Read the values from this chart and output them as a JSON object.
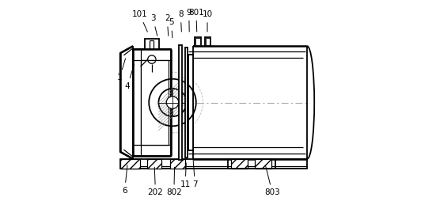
{
  "bg_color": "#ffffff",
  "line_color": "#000000",
  "figsize": [
    5.51,
    2.59
  ],
  "dpi": 100,
  "labels": {
    "1": [
      0.02,
      0.62,
      0.05,
      0.72
    ],
    "4": [
      0.058,
      0.58,
      0.092,
      0.69
    ],
    "101": [
      0.118,
      0.93,
      0.158,
      0.84
    ],
    "3": [
      0.183,
      0.91,
      0.205,
      0.82
    ],
    "2": [
      0.252,
      0.91,
      0.258,
      0.82
    ],
    "5": [
      0.272,
      0.89,
      0.278,
      0.81
    ],
    "8": [
      0.318,
      0.93,
      0.322,
      0.84
    ],
    "9": [
      0.358,
      0.94,
      0.36,
      0.84
    ],
    "801": [
      0.393,
      0.94,
      0.397,
      0.84
    ],
    "10": [
      0.448,
      0.93,
      0.448,
      0.84
    ],
    "6": [
      0.045,
      0.07,
      0.058,
      0.2
    ],
    "202": [
      0.195,
      0.06,
      0.19,
      0.19
    ],
    "802": [
      0.285,
      0.06,
      0.288,
      0.19
    ],
    "11": [
      0.34,
      0.1,
      0.345,
      0.21
    ],
    "7": [
      0.388,
      0.1,
      0.378,
      0.23
    ],
    "803": [
      0.765,
      0.06,
      0.73,
      0.2
    ]
  }
}
